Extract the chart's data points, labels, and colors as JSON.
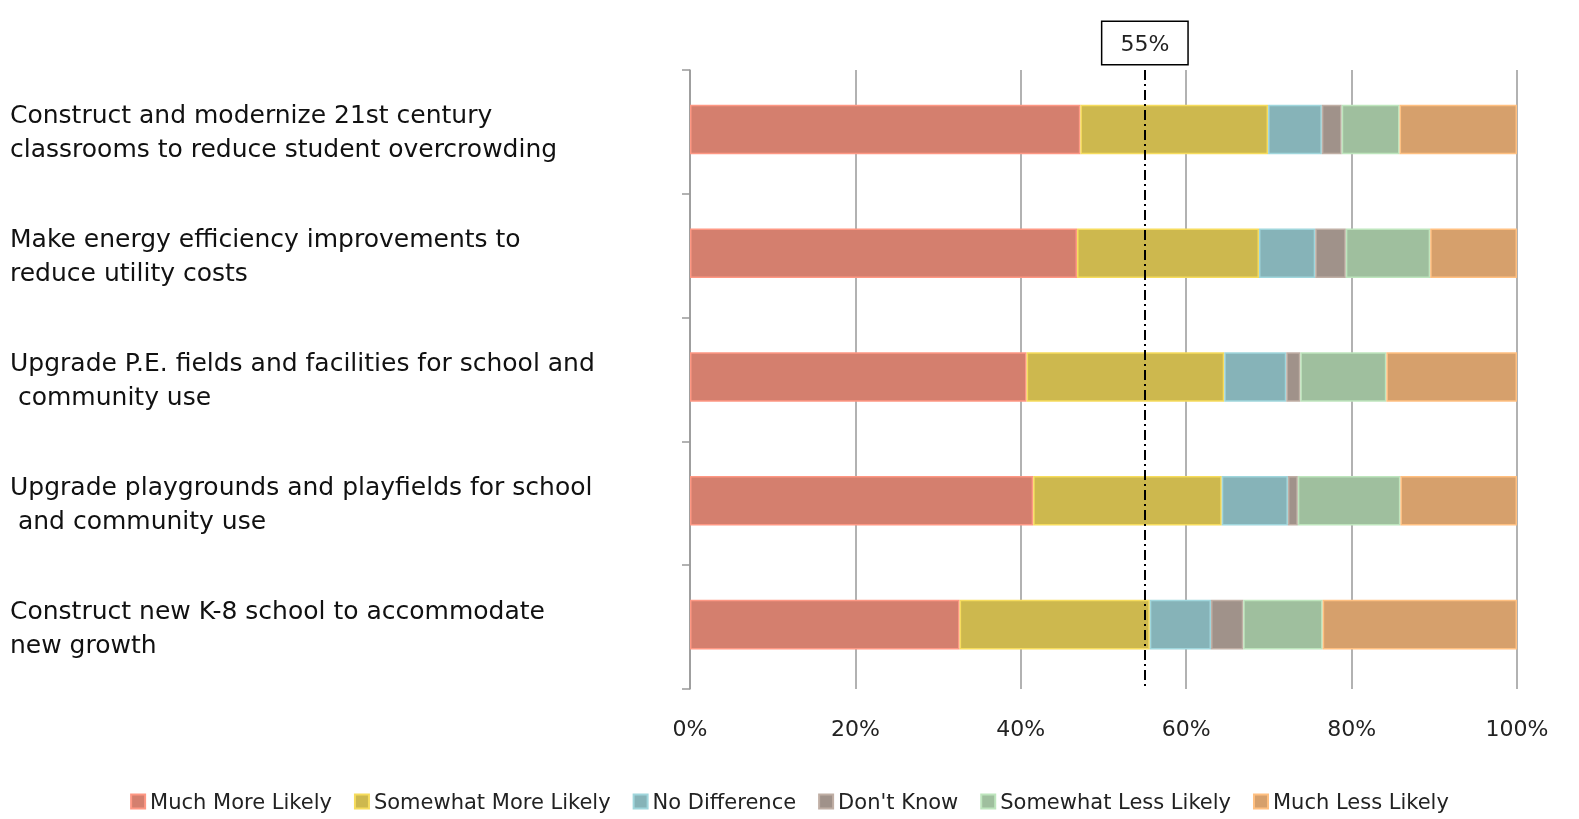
{
  "chart_data": {
    "type": "bar",
    "orientation": "horizontal",
    "stacked": true,
    "categories": [
      "Construct and modernize 21st century classrooms to reduce student overcrowding",
      "Make energy efficiency improvements to reduce utility costs",
      "Upgrade P.E. fields and facilities for school and community use",
      "Upgrade playgrounds and playfields for school and community use",
      "Construct new K-8 school to accommodate new growth"
    ],
    "series": [
      {
        "name": "Much More Likely",
        "color": "#d47f6e",
        "values": [
          47.2,
          46.8,
          40.7,
          41.5,
          32.6
        ]
      },
      {
        "name": "Somewhat More Likely",
        "color": "#cdb84e",
        "values": [
          22.7,
          22.0,
          23.9,
          22.8,
          23.0
        ]
      },
      {
        "name": "No Difference",
        "color": "#86b3b8",
        "values": [
          6.5,
          6.8,
          7.5,
          8.0,
          7.4
        ]
      },
      {
        "name": "Don't Know",
        "color": "#a0928a",
        "values": [
          2.4,
          3.7,
          1.7,
          1.2,
          3.9
        ]
      },
      {
        "name": "Somewhat Less Likely",
        "color": "#9fbf9e",
        "values": [
          7.0,
          10.2,
          10.4,
          12.4,
          9.6
        ]
      },
      {
        "name": "Much Less Likely",
        "color": "#d6a06c",
        "values": [
          14.2,
          10.5,
          15.8,
          14.1,
          23.5
        ]
      }
    ],
    "xlim": [
      0,
      100
    ],
    "xticks": [
      {
        "value": 0,
        "label": "0%"
      },
      {
        "value": 20,
        "label": "20%"
      },
      {
        "value": 40,
        "label": "40%"
      },
      {
        "value": 60,
        "label": "60%"
      },
      {
        "value": 80,
        "label": "80%"
      },
      {
        "value": 100,
        "label": "100%"
      }
    ],
    "ref_lines": [
      {
        "axis": "x",
        "value": 55,
        "label": "55%",
        "color": "#000000",
        "line_style": "dashed"
      }
    ],
    "grid": "x",
    "legend": "bottom"
  }
}
